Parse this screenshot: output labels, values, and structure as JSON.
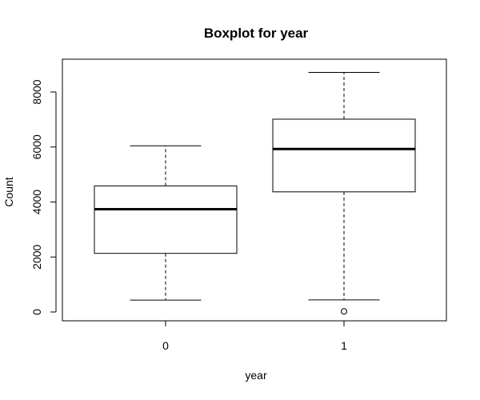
{
  "chart_data": {
    "type": "boxplot",
    "title": "Boxplot for year",
    "xlabel": "year",
    "ylabel": "Count",
    "categories": [
      "0",
      "1"
    ],
    "ylim": [
      0,
      9000
    ],
    "yticks": [
      0,
      2000,
      4000,
      6000,
      8000
    ],
    "ytick_labels": [
      "0",
      "2000",
      "4000",
      "6000",
      "8000"
    ],
    "boxes": [
      {
        "category": "0",
        "whisker_low": 431,
        "q1": 2132,
        "median": 3740,
        "q3": 4586,
        "whisker_high": 6043,
        "outliers": []
      },
      {
        "category": "1",
        "whisker_low": 441,
        "q1": 4369,
        "median": 5928,
        "q3": 7012,
        "whisker_high": 8714,
        "outliers": [
          22
        ]
      }
    ],
    "grid": false,
    "legend": "none"
  }
}
